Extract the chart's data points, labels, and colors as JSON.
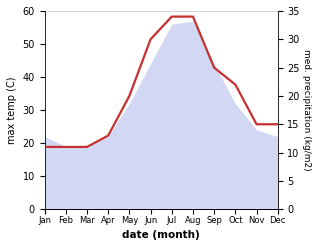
{
  "months": [
    "Jan",
    "Feb",
    "Mar",
    "Apr",
    "May",
    "Jun",
    "Jul",
    "Aug",
    "Sep",
    "Oct",
    "Nov",
    "Dec"
  ],
  "max_temp": [
    22,
    19,
    19,
    22,
    32,
    44,
    56,
    57,
    44,
    32,
    24,
    22
  ],
  "precipitation": [
    11,
    11,
    11,
    13,
    20,
    30,
    34,
    34,
    25,
    22,
    15,
    15
  ],
  "temp_ylim": [
    0,
    60
  ],
  "precip_ylim": [
    0,
    35
  ],
  "temp_fill_color": "#c0c8f0",
  "precip_color": "#c83030",
  "xlabel": "date (month)",
  "ylabel_left": "max temp (C)",
  "ylabel_right": "med. precipitation (kg/m2)",
  "bg_color": "#ffffff"
}
